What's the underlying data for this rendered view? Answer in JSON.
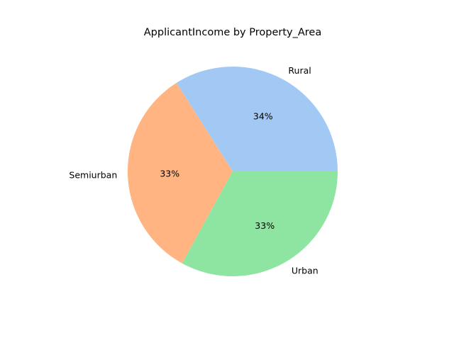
{
  "chart_data": {
    "type": "pie",
    "title": "ApplicantIncome by Property_Area",
    "categories": [
      "Rural",
      "Semiurban",
      "Urban"
    ],
    "values": [
      34,
      33,
      33
    ],
    "percent_labels": [
      "34%",
      "33%",
      "33%"
    ],
    "colors": [
      "#a1c9f4",
      "#ffb482",
      "#8de5a1"
    ],
    "start_angle_deg": 0,
    "direction": "counterclockwise",
    "legend": "none"
  }
}
